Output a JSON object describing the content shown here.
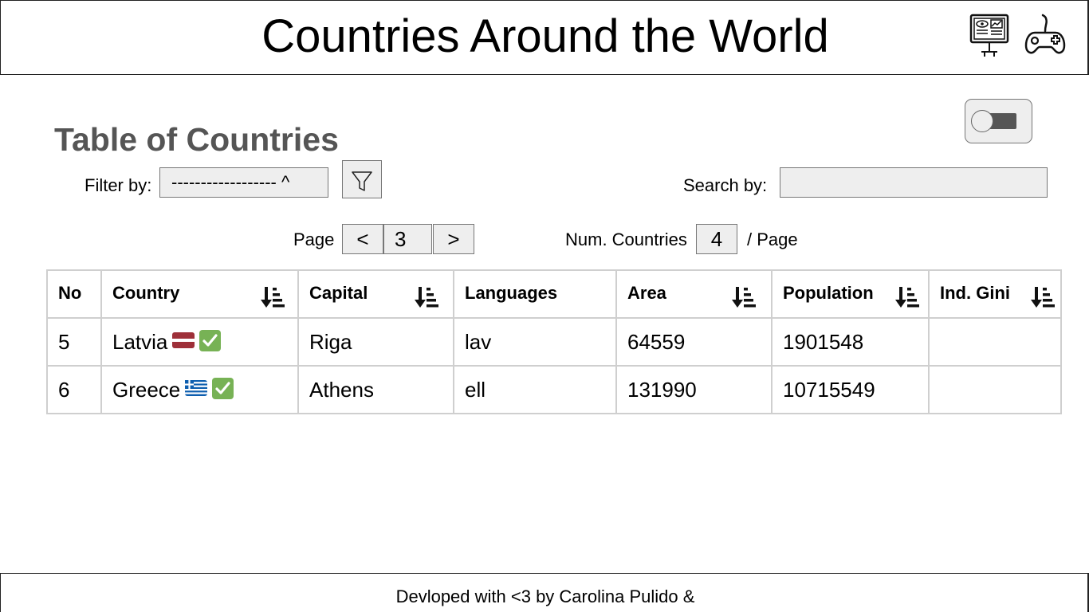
{
  "header": {
    "title": "Countries Around the World",
    "icons": [
      "monitor-dashboard-icon",
      "gamepad-icon"
    ]
  },
  "section": {
    "title": "Table of Countries"
  },
  "toggle": {
    "state": "off"
  },
  "filter": {
    "label": "Filter by:",
    "selected": "------------------ ^",
    "button_icon": "funnel-icon"
  },
  "search": {
    "label": "Search by:",
    "value": "",
    "placeholder": ""
  },
  "pagination": {
    "label": "Page",
    "prev": "<",
    "current": "3",
    "next": ">"
  },
  "per_page": {
    "label": "Num. Countries",
    "value": "4",
    "suffix": "/ Page"
  },
  "table": {
    "columns": [
      "No",
      "Country",
      "Capital",
      "Languages",
      "Area",
      "Population",
      "Ind. Gini"
    ],
    "sortable": [
      false,
      true,
      true,
      false,
      true,
      true,
      true
    ],
    "rows": [
      {
        "no": "5",
        "country": "Latvia",
        "flag": "latvia-flag-icon",
        "check": "check-mark-icon",
        "capital": "Riga",
        "languages": "lav",
        "area": "64559",
        "population": "1901548",
        "gini": ""
      },
      {
        "no": "6",
        "country": "Greece",
        "flag": "greece-flag-icon",
        "check": "check-mark-icon",
        "capital": "Athens",
        "languages": "ell",
        "area": "131990",
        "population": "10715549",
        "gini": ""
      }
    ]
  },
  "footer": {
    "text": "Devloped with <3 by Carolina Pulido &"
  },
  "colors": {
    "title_gray": "#555555",
    "control_bg": "#eeeeee",
    "check_green": "#77b255",
    "latvia_red": "#9e3039",
    "greece_blue": "#0d5eaf"
  }
}
